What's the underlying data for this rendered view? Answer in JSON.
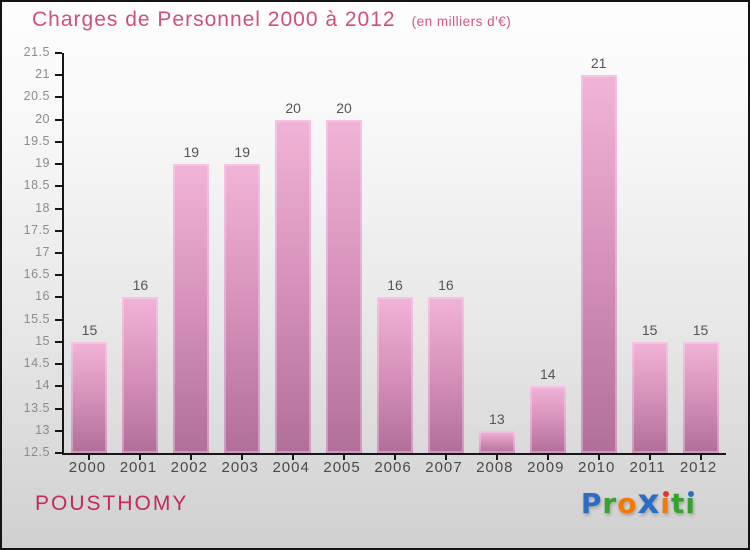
{
  "header": {
    "title": "Charges de Personnel 2000 à 2012",
    "subtitle": "(en milliers d'€)"
  },
  "footer": {
    "commune": "POUSTHOMY",
    "logo_text": "Proxiti",
    "logo_letters": [
      {
        "ch": "P",
        "color": "#2b6cc4"
      },
      {
        "ch": "r",
        "color": "#35a22d"
      },
      {
        "ch": "o",
        "color": "#f57900"
      },
      {
        "ch": "x",
        "color": "#2b6cc4",
        "large": true
      },
      {
        "ch": "i",
        "color": "#f57900",
        "dot": "#e03a2f"
      },
      {
        "ch": "t",
        "color": "#35a22d"
      },
      {
        "ch": "i",
        "color": "#35a22d",
        "dot": "#2b6cc4"
      }
    ]
  },
  "colors": {
    "title_pink": "#d14f78",
    "commune_pink": "#c22a5e",
    "bar_top": "#f1b4d7",
    "bar_bottom": "#b06f99",
    "axis": "#161616",
    "label_gray": "#555555"
  },
  "chart_data": {
    "type": "bar",
    "title": "Charges de Personnel 2000 à 2012",
    "subtitle": "(en milliers d'€)",
    "categories": [
      "2000",
      "2001",
      "2002",
      "2003",
      "2004",
      "2005",
      "2006",
      "2007",
      "2008",
      "2009",
      "2010",
      "2011",
      "2012"
    ],
    "values": [
      15,
      16,
      19,
      19,
      20,
      20,
      16,
      16,
      13,
      14,
      21,
      15,
      15
    ],
    "xlabel": "",
    "ylabel": "",
    "ylim": [
      12.5,
      21.5
    ],
    "ytick_step": 0.5,
    "grid": false,
    "legend": false,
    "value_labels": true
  }
}
